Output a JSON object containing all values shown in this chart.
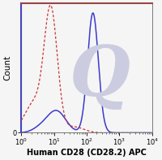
{
  "title": "",
  "xlabel": "Human CD28 (CD28.2) APC",
  "ylabel": "Count",
  "xlim": [
    1.0,
    10000
  ],
  "background_color": "#f5f5f5",
  "plot_bg_color": "#f5f5f5",
  "watermark_color": "#cccce0",
  "solid_line_color": "#3a3acc",
  "dashed_line_color": "#cc3333",
  "xlabel_fontsize": 7.0,
  "ylabel_fontsize": 7.5,
  "tick_fontsize": 6.0
}
